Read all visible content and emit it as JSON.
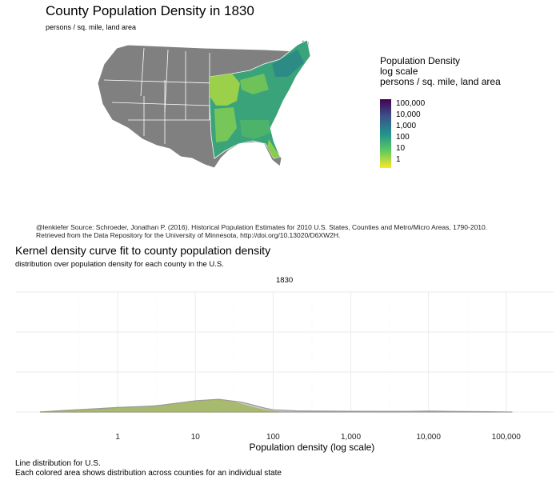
{
  "map": {
    "title": "County Population Density in 1830",
    "subtitle": "persons / sq. mile, land area",
    "legend": {
      "title_lines": [
        "Population Density",
        "log scale",
        "persons / sq. mile, land area"
      ],
      "ticks": [
        "100,000",
        "10,000",
        "1,000",
        "100",
        "10",
        "1"
      ],
      "colors": [
        "#440154",
        "#3b528b",
        "#21918c",
        "#5ec962",
        "#fde725"
      ],
      "no_data_color": "#808080"
    }
  },
  "caption": "@lenkiefer Source: Schroeder, Jonathan P. (2016). Historical Population Estimates for 2010 U.S. States, Counties and Metro/Micro Areas, 1790-2010. Retrieved from the Data Repository for the University of Minnesota, http://doi.org/10.13020/D6XW2H.",
  "density_chart": {
    "title": "Kernel density curve fit to county population density",
    "subtitle": "distribution over population density for each county in the U.S.",
    "facet_label": "1830",
    "footnote_1": "Line distribution for U.S.",
    "footnote_2": "Each colored area shows distribution across counties for an individual state"
  },
  "chart_data": {
    "type": "area",
    "title": "Kernel density curve fit to county population density",
    "xlabel": "Population density (log scale)",
    "ylabel": "",
    "x_scale": "log10",
    "x_ticks": [
      1,
      10,
      100,
      1000,
      10000,
      100000
    ],
    "x_tick_labels": [
      "1",
      "10",
      "100",
      "1,000",
      "10,000",
      "100,000"
    ],
    "xlim": [
      0.1,
      200000
    ],
    "ylim": [
      0,
      1.6
    ],
    "grid": true,
    "series": [
      {
        "fill": "#b5de2b",
        "x": [
          0.1,
          0.2,
          0.5,
          1,
          2,
          5,
          10,
          15,
          20,
          30,
          50,
          80,
          120
        ],
        "y": [
          0.0,
          0.02,
          0.04,
          0.06,
          0.07,
          0.1,
          0.14,
          0.16,
          0.16,
          0.14,
          0.07,
          0.02,
          0.0
        ]
      },
      {
        "fill": "#9a9a9a",
        "x": [
          0.1,
          0.3,
          1,
          3,
          10,
          20,
          40,
          80,
          100,
          200,
          1000,
          5000,
          10000,
          20000,
          60000,
          120000
        ],
        "y": [
          0.0,
          0.03,
          0.06,
          0.08,
          0.15,
          0.17,
          0.13,
          0.05,
          0.03,
          0.015,
          0.01,
          0.008,
          0.012,
          0.008,
          0.004,
          0.0
        ]
      }
    ]
  }
}
